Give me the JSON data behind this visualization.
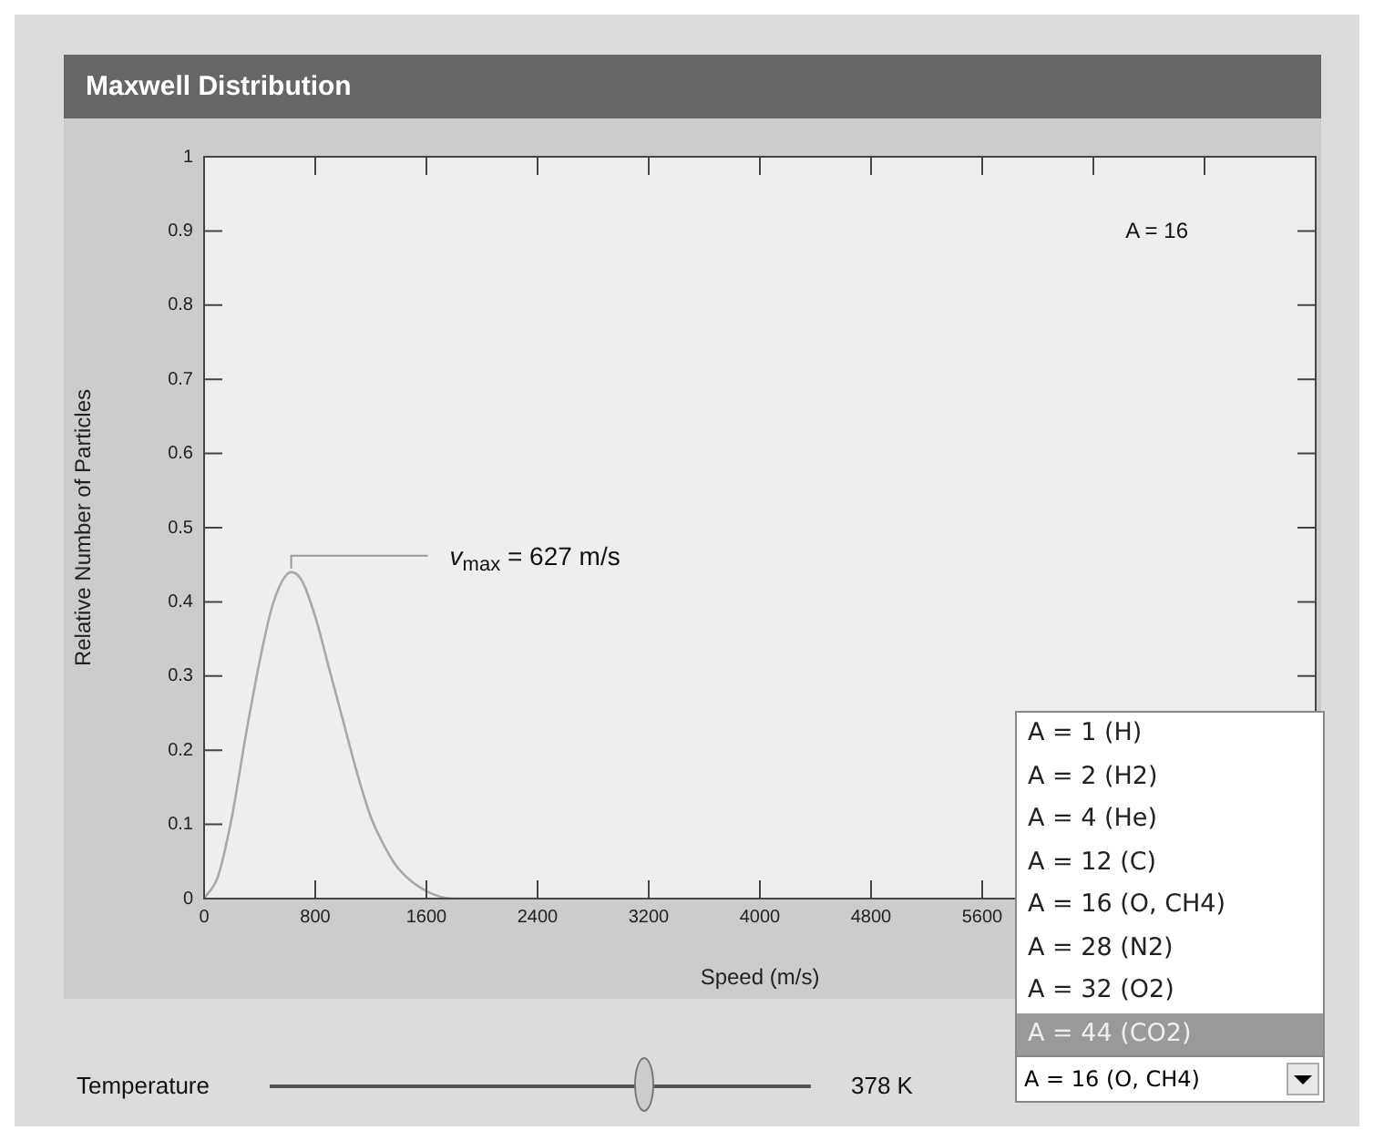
{
  "chart_data": {
    "type": "line",
    "title": "Maxwell Distribution",
    "xlabel": "Speed (m/s)",
    "ylabel": "Relative Number of Particles",
    "series": [
      {
        "color": "#a8a8a8",
        "x": [
          0,
          100,
          200,
          300,
          400,
          500,
          627,
          700,
          800,
          900,
          1000,
          1100,
          1200,
          1300,
          1400,
          1600,
          1800,
          2000,
          2400
        ],
        "values": [
          0,
          0.03,
          0.11,
          0.22,
          0.32,
          0.4,
          0.44,
          0.43,
          0.38,
          0.31,
          0.24,
          0.17,
          0.11,
          0.07,
          0.04,
          0.01,
          0,
          0,
          0
        ]
      }
    ],
    "xlim": [
      0,
      8000
    ],
    "xticks": [
      0,
      800,
      1600,
      2400,
      3200,
      4000,
      4800,
      5600,
      {
        "value": 6400,
        "label": null
      },
      {
        "value": 7200,
        "label": null
      }
    ],
    "ylim": [
      0,
      1
    ],
    "yticks": [
      0,
      0.1,
      0.2,
      0.3,
      0.4,
      0.5,
      0.6,
      0.7,
      0.8,
      0.9,
      1
    ],
    "marker": "none",
    "legend": false,
    "annotations": [
      {
        "text": "v$_{max}$ = 627 m/s",
        "x": 627,
        "y": 0.44
      },
      "A = 16",
      "Temperature",
      "378 K",
      "A = 1 (H)",
      "A = 2 (H2)",
      "A = 4 (He)",
      "A = 12 (C)",
      "A = 16 (O, CH4)",
      "A = 28 (N2)",
      "A = 32 (O2)",
      "A = 44 (CO2)"
    ]
  }
}
